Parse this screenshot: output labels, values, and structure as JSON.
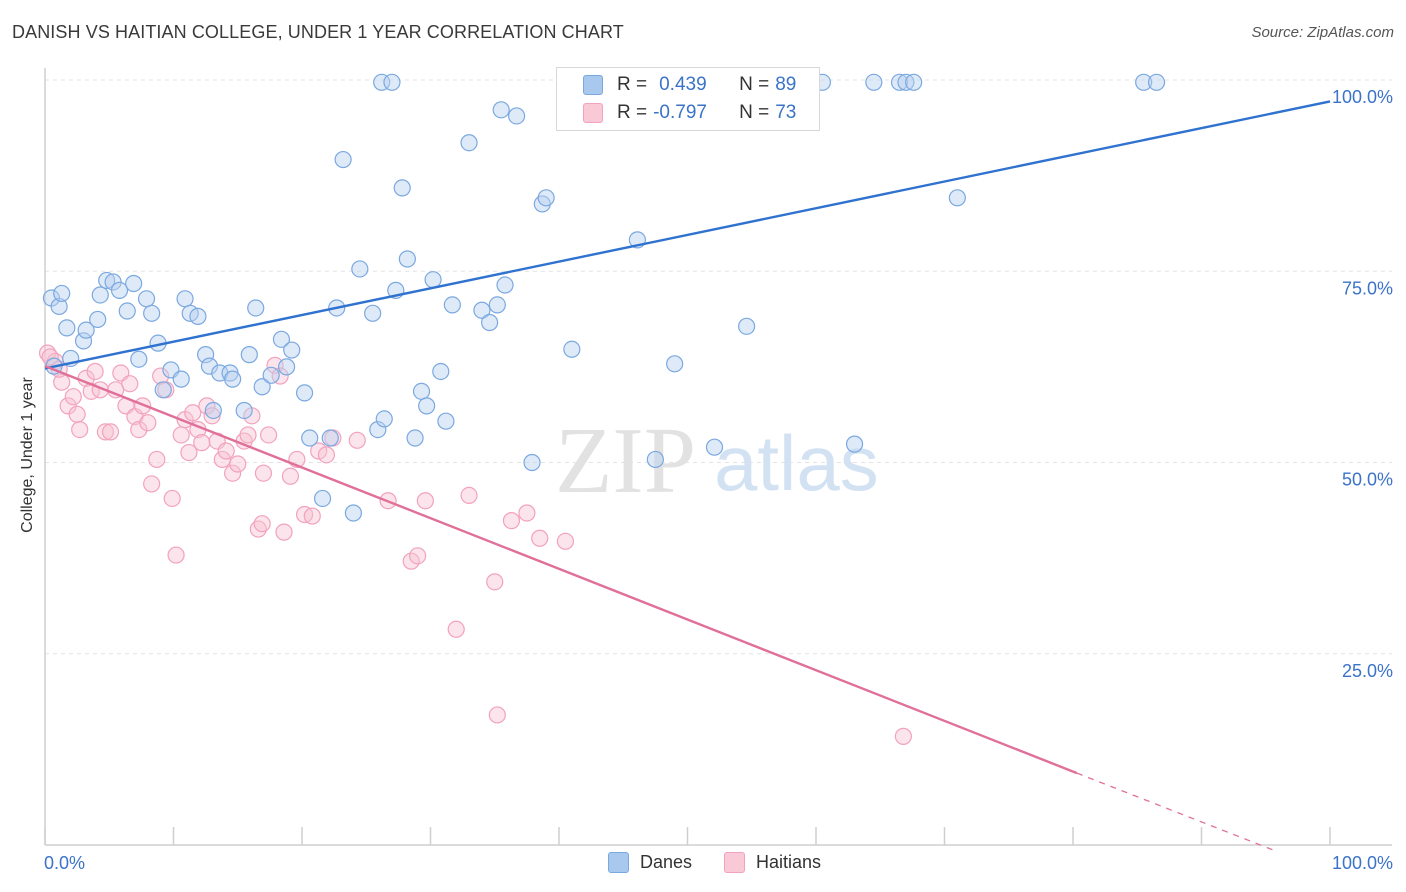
{
  "title": "DANISH VS HAITIAN COLLEGE, UNDER 1 YEAR CORRELATION CHART",
  "source": "Source: ZipAtlas.com",
  "watermark": {
    "zip": "ZIP",
    "atlas": "atlas"
  },
  "legend": {
    "rows": [
      {
        "r_label": "R =",
        "r_value": "0.439",
        "n_label": "N =",
        "n_value": "89",
        "color": "#a9c8ee"
      },
      {
        "r_label": "R =",
        "r_value": "-0.797",
        "n_label": "N =",
        "n_value": "73",
        "color": "#f7b8cb"
      }
    ]
  },
  "bottom_legend": {
    "danes": "Danes",
    "haitians": "Haitians"
  },
  "chart_data": {
    "type": "scatter",
    "title": "DANISH VS HAITIAN COLLEGE, UNDER 1 YEAR CORRELATION CHART",
    "xlabel": "",
    "ylabel": "College, Under 1 year",
    "xlim": [
      0,
      100
    ],
    "ylim": [
      0,
      100
    ],
    "x_tick_labels": [
      "0.0%",
      "100.0%"
    ],
    "y_tick_labels": [
      "25.0%",
      "50.0%",
      "75.0%",
      "100.0%"
    ],
    "y_ticks": [
      25,
      50,
      75,
      100
    ],
    "grid": true,
    "colors": {
      "danes": "#7aa8e0",
      "danes_line": "#2f72cf",
      "haitians": "#f2a2bc",
      "haitians_line": "#e0709a",
      "axis_text": "#3a73c8"
    },
    "series": [
      {
        "name": "Danes",
        "trend": {
          "x0": 0,
          "y0": 62.3,
          "x1": 100,
          "y1": 97.2
        },
        "points": [
          [
            0.5,
            71.5
          ],
          [
            0.7,
            62.6
          ],
          [
            1.1,
            70.4
          ],
          [
            1.3,
            72.1
          ],
          [
            1.7,
            67.6
          ],
          [
            2.0,
            63.6
          ],
          [
            3.0,
            65.9
          ],
          [
            3.2,
            67.3
          ],
          [
            4.1,
            68.7
          ],
          [
            4.3,
            71.9
          ],
          [
            4.8,
            73.8
          ],
          [
            5.3,
            73.6
          ],
          [
            5.8,
            72.5
          ],
          [
            6.4,
            69.8
          ],
          [
            6.9,
            73.4
          ],
          [
            7.3,
            63.5
          ],
          [
            7.9,
            71.4
          ],
          [
            8.3,
            69.5
          ],
          [
            8.8,
            65.6
          ],
          [
            9.2,
            59.5
          ],
          [
            9.8,
            62.1
          ],
          [
            10.6,
            60.9
          ],
          [
            10.9,
            71.4
          ],
          [
            11.3,
            69.5
          ],
          [
            11.9,
            69.1
          ],
          [
            12.5,
            64.1
          ],
          [
            12.8,
            62.6
          ],
          [
            13.1,
            56.8
          ],
          [
            13.6,
            61.7
          ],
          [
            14.4,
            61.7
          ],
          [
            14.6,
            60.9
          ],
          [
            15.5,
            56.8
          ],
          [
            15.9,
            64.1
          ],
          [
            16.4,
            70.2
          ],
          [
            16.9,
            59.9
          ],
          [
            17.6,
            61.4
          ],
          [
            18.4,
            66.1
          ],
          [
            18.8,
            62.5
          ],
          [
            19.2,
            64.7
          ],
          [
            20.2,
            59.1
          ],
          [
            20.6,
            53.2
          ],
          [
            21.6,
            45.3
          ],
          [
            22.2,
            53.2
          ],
          [
            22.7,
            70.2
          ],
          [
            23.2,
            89.6
          ],
          [
            24.0,
            43.4
          ],
          [
            24.5,
            75.3
          ],
          [
            25.5,
            69.5
          ],
          [
            25.9,
            54.3
          ],
          [
            26.2,
            99.7
          ],
          [
            26.4,
            55.7
          ],
          [
            27.3,
            72.5
          ],
          [
            27.8,
            85.9
          ],
          [
            28.2,
            76.6
          ],
          [
            28.8,
            53.2
          ],
          [
            29.3,
            59.3
          ],
          [
            29.7,
            57.4
          ],
          [
            30.2,
            73.9
          ],
          [
            30.8,
            61.9
          ],
          [
            31.2,
            55.4
          ],
          [
            31.7,
            70.6
          ],
          [
            33.0,
            91.8
          ],
          [
            34.0,
            69.9
          ],
          [
            34.6,
            68.3
          ],
          [
            35.2,
            70.6
          ],
          [
            35.8,
            73.2
          ],
          [
            35.5,
            96.1
          ],
          [
            36.7,
            95.3
          ],
          [
            37.9,
            50.0
          ],
          [
            38.7,
            83.8
          ],
          [
            39.0,
            84.6
          ],
          [
            41.0,
            64.8
          ],
          [
            44.2,
            99.7
          ],
          [
            46.1,
            79.1
          ],
          [
            47.5,
            50.4
          ],
          [
            49.0,
            62.9
          ],
          [
            52.1,
            52.0
          ],
          [
            53.4,
            99.7
          ],
          [
            54.6,
            67.8
          ],
          [
            60.5,
            99.7
          ],
          [
            63.0,
            52.4
          ],
          [
            64.5,
            99.7
          ],
          [
            66.5,
            99.7
          ],
          [
            67.0,
            99.7
          ],
          [
            67.6,
            99.7
          ],
          [
            71.0,
            84.6
          ],
          [
            85.5,
            99.7
          ],
          [
            86.5,
            99.7
          ],
          [
            27.0,
            99.7
          ]
        ]
      },
      {
        "name": "Haitians",
        "trend": {
          "x0": 0,
          "y0": 62.6,
          "x1": 80.3,
          "y1": 9.4,
          "dash_x1": 95.8,
          "dash_y1": -0.8
        },
        "points": [
          [
            0.2,
            64.3
          ],
          [
            0.8,
            63.2
          ],
          [
            1.3,
            60.5
          ],
          [
            1.8,
            57.4
          ],
          [
            2.2,
            58.6
          ],
          [
            2.7,
            54.3
          ],
          [
            3.2,
            61.0
          ],
          [
            3.6,
            59.3
          ],
          [
            3.9,
            61.9
          ],
          [
            4.3,
            59.5
          ],
          [
            4.7,
            54.0
          ],
          [
            5.1,
            54.0
          ],
          [
            5.5,
            59.5
          ],
          [
            5.9,
            61.7
          ],
          [
            6.3,
            57.4
          ],
          [
            6.6,
            60.3
          ],
          [
            7.0,
            56.0
          ],
          [
            7.3,
            54.3
          ],
          [
            7.6,
            57.4
          ],
          [
            8.0,
            55.2
          ],
          [
            8.3,
            47.2
          ],
          [
            8.7,
            50.4
          ],
          [
            9.0,
            61.3
          ],
          [
            9.4,
            59.5
          ],
          [
            9.9,
            45.3
          ],
          [
            10.2,
            37.9
          ],
          [
            10.6,
            53.6
          ],
          [
            10.9,
            55.6
          ],
          [
            11.2,
            51.3
          ],
          [
            11.5,
            56.5
          ],
          [
            11.9,
            54.3
          ],
          [
            12.2,
            52.6
          ],
          [
            12.6,
            57.4
          ],
          [
            13.0,
            56.1
          ],
          [
            13.4,
            52.8
          ],
          [
            13.8,
            50.4
          ],
          [
            14.1,
            51.5
          ],
          [
            14.6,
            48.6
          ],
          [
            15.0,
            49.8
          ],
          [
            15.5,
            52.8
          ],
          [
            15.8,
            53.6
          ],
          [
            16.1,
            56.1
          ],
          [
            16.6,
            41.3
          ],
          [
            17.0,
            48.6
          ],
          [
            17.4,
            53.6
          ],
          [
            17.9,
            62.7
          ],
          [
            18.3,
            61.3
          ],
          [
            18.6,
            40.9
          ],
          [
            19.1,
            48.2
          ],
          [
            19.6,
            50.4
          ],
          [
            20.2,
            43.2
          ],
          [
            20.8,
            43.0
          ],
          [
            21.3,
            51.5
          ],
          [
            21.9,
            51.0
          ],
          [
            22.4,
            53.2
          ],
          [
            26.7,
            45.0
          ],
          [
            28.5,
            37.1
          ],
          [
            29.0,
            37.8
          ],
          [
            29.6,
            45.0
          ],
          [
            32.0,
            28.2
          ],
          [
            33.0,
            45.7
          ],
          [
            35.0,
            34.4
          ],
          [
            36.3,
            42.4
          ],
          [
            37.5,
            43.4
          ],
          [
            38.5,
            40.1
          ],
          [
            40.5,
            39.7
          ],
          [
            35.2,
            17.0
          ],
          [
            66.8,
            14.2
          ],
          [
            0.4,
            63.8
          ],
          [
            1.1,
            62.2
          ],
          [
            2.5,
            56.3
          ],
          [
            16.9,
            42.0
          ],
          [
            24.3,
            52.9
          ]
        ]
      }
    ]
  }
}
